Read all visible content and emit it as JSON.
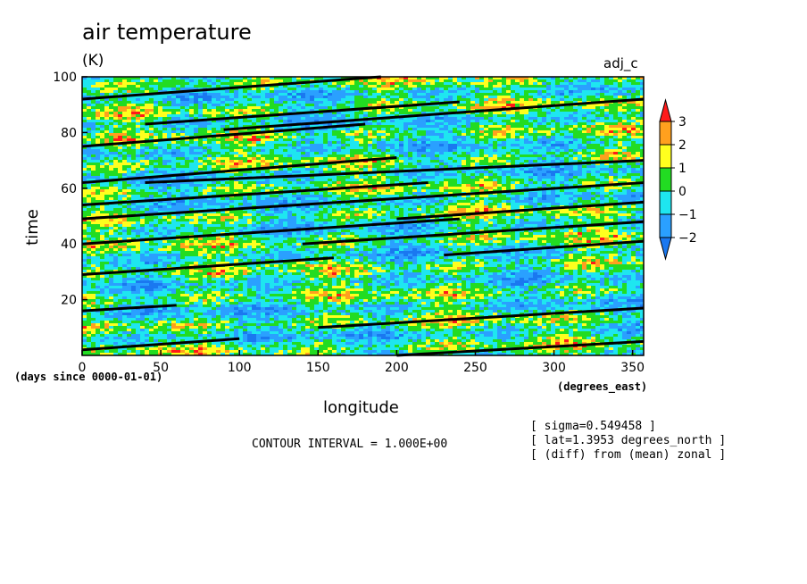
{
  "chart_data": {
    "type": "heatmap",
    "title": "air temperature",
    "units": "(K)",
    "run_label": "adj_c",
    "xlabel": "longitude",
    "ylabel": "time",
    "x_units": "(degrees_east)",
    "y_units": "(days since 0000-01-01)",
    "xlim": [
      0,
      357
    ],
    "ylim": [
      0,
      100
    ],
    "x_ticks": [
      0,
      50,
      100,
      150,
      200,
      250,
      300,
      350
    ],
    "y_ticks": [
      20,
      40,
      60,
      80,
      100
    ],
    "colorbar": {
      "levels": [
        -2,
        -1,
        0,
        1,
        2,
        3
      ],
      "bins": [
        {
          "range": "< -2",
          "color": "#1a78f0"
        },
        {
          "range": "-2 to -1",
          "color": "#2aa0ff"
        },
        {
          "range": "-1 to 0",
          "color": "#1ee6f0"
        },
        {
          "range": "0 to 1",
          "color": "#22dc22"
        },
        {
          "range": "1 to 2",
          "color": "#ffff1e"
        },
        {
          "range": "2 to 3",
          "color": "#ffa01e"
        },
        {
          "range": "> 3",
          "color": "#ff1a1a"
        }
      ],
      "tick_labels": [
        "3",
        "2",
        "1",
        "0",
        "−1",
        "−2"
      ]
    },
    "contour_lines": [
      {
        "x": [
          0,
          190
        ],
        "y": [
          92,
          100
        ]
      },
      {
        "x": [
          0,
          180
        ],
        "y": [
          75,
          83
        ]
      },
      {
        "x": [
          40,
          240
        ],
        "y": [
          83,
          91
        ]
      },
      {
        "x": [
          90,
          357
        ],
        "y": [
          81,
          92
        ]
      },
      {
        "x": [
          40,
          357
        ],
        "y": [
          62,
          70
        ]
      },
      {
        "x": [
          0,
          200
        ],
        "y": [
          62,
          71
        ]
      },
      {
        "x": [
          0,
          220
        ],
        "y": [
          54,
          62
        ]
      },
      {
        "x": [
          0,
          357
        ],
        "y": [
          49,
          62
        ]
      },
      {
        "x": [
          200,
          357
        ],
        "y": [
          49,
          55
        ]
      },
      {
        "x": [
          0,
          240
        ],
        "y": [
          40,
          49
        ]
      },
      {
        "x": [
          140,
          357
        ],
        "y": [
          40,
          48
        ]
      },
      {
        "x": [
          230,
          357
        ],
        "y": [
          36,
          41
        ]
      },
      {
        "x": [
          0,
          160
        ],
        "y": [
          29,
          35
        ]
      },
      {
        "x": [
          0,
          60
        ],
        "y": [
          16,
          18
        ]
      },
      {
        "x": [
          150,
          357
        ],
        "y": [
          10,
          17
        ]
      },
      {
        "x": [
          0,
          100
        ],
        "y": [
          2,
          6
        ]
      },
      {
        "x": [
          200,
          357
        ],
        "y": [
          0,
          5
        ]
      }
    ],
    "contour_interval_text": "CONTOUR INTERVAL = 1.000E+00",
    "annotations": [
      "[ sigma=0.549458 ]",
      "[ lat=1.3953 degrees_north ]",
      "[ (diff) from (mean) zonal ]"
    ]
  }
}
